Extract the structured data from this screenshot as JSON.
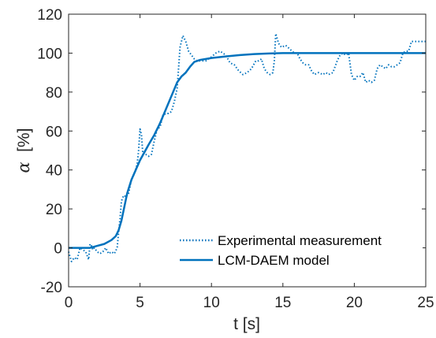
{
  "chart_data": {
    "type": "line",
    "xlabel": "t [s]",
    "ylabel_symbol": "α",
    "ylabel_unit": "[%]",
    "xlim": [
      0,
      25
    ],
    "ylim": [
      -20,
      120
    ],
    "xticks": [
      "0",
      "5",
      "10",
      "15",
      "20",
      "25"
    ],
    "yticks": [
      "-20",
      "0",
      "20",
      "40",
      "60",
      "80",
      "100",
      "120"
    ],
    "xtick_values": [
      0,
      5,
      10,
      15,
      20,
      25
    ],
    "ytick_values": [
      -20,
      0,
      20,
      40,
      60,
      80,
      100,
      120
    ],
    "grid": false,
    "legend_position": "bottom-right",
    "series": [
      {
        "name": "Experimental measurement",
        "style": "dotted",
        "color": "#0072BD",
        "x": [
          0,
          0.2,
          0.4,
          0.6,
          0.8,
          1.0,
          1.2,
          1.3,
          1.4,
          1.5,
          1.6,
          1.7,
          1.8,
          2.0,
          2.2,
          2.4,
          2.6,
          2.8,
          3.0,
          3.2,
          3.4,
          3.5,
          3.6,
          3.7,
          3.8,
          3.9,
          4.0,
          4.2,
          4.4,
          4.6,
          4.8,
          4.9,
          5.0,
          5.1,
          5.2,
          5.4,
          5.6,
          5.8,
          6.0,
          6.2,
          6.4,
          6.6,
          6.8,
          7.0,
          7.2,
          7.4,
          7.6,
          7.8,
          8.0,
          8.2,
          8.4,
          8.6,
          8.8,
          9.0,
          9.2,
          9.4,
          9.6,
          9.8,
          10.0,
          10.3,
          10.6,
          11.0,
          11.3,
          11.6,
          11.9,
          12.2,
          12.5,
          12.8,
          13.1,
          13.3,
          13.5,
          13.7,
          13.9,
          14.1,
          14.3,
          14.4,
          14.5,
          14.7,
          14.9,
          15.2,
          15.5,
          15.8,
          16.0,
          16.2,
          16.4,
          16.6,
          16.8,
          17.0,
          17.2,
          17.5,
          17.8,
          18.0,
          18.2,
          18.5,
          18.8,
          19.0,
          19.2,
          19.4,
          19.6,
          19.8,
          20.0,
          20.2,
          20.4,
          20.6,
          20.8,
          21.0,
          21.2,
          21.4,
          21.6,
          21.8,
          22.0,
          22.2,
          22.4,
          22.6,
          22.8,
          23.0,
          23.2,
          23.4,
          23.6,
          23.8,
          24.0,
          24.3,
          24.6,
          25.0
        ],
        "y": [
          -2,
          -7,
          -5,
          -6,
          0,
          -1,
          -2,
          -4,
          -6,
          2,
          1,
          -1,
          0,
          -2,
          -3,
          -2,
          0,
          -3,
          -2,
          -3,
          0,
          8,
          15,
          24,
          26,
          27,
          26,
          28,
          35,
          38,
          43,
          50,
          61,
          58,
          48,
          48,
          47,
          48,
          55,
          61,
          62,
          68,
          69,
          69,
          70,
          75,
          82,
          103,
          109,
          106,
          101,
          99,
          97,
          96,
          96,
          96,
          96,
          97,
          98,
          100,
          101,
          99,
          95,
          94,
          91,
          89,
          90,
          92,
          96,
          96,
          97,
          92,
          90,
          89,
          90,
          96,
          110,
          105,
          103,
          104,
          102,
          100,
          100,
          97,
          95,
          94,
          94,
          91,
          89,
          90,
          89,
          90,
          89,
          90,
          96,
          99,
          100,
          99,
          100,
          89,
          86,
          88,
          88,
          90,
          85,
          86,
          85,
          86,
          92,
          94,
          93,
          92,
          94,
          93,
          93,
          94,
          95,
          100,
          101,
          101,
          106,
          106,
          106,
          106
        ]
      },
      {
        "name": "LCM-DAEM model",
        "style": "solid",
        "color": "#0072BD",
        "x": [
          0,
          1.5,
          2.0,
          2.5,
          3.0,
          3.3,
          3.5,
          3.7,
          3.9,
          4.1,
          4.4,
          4.7,
          5.0,
          5.3,
          5.6,
          6.0,
          6.4,
          6.8,
          7.2,
          7.6,
          7.9,
          8.2,
          8.5,
          8.8,
          9.2,
          9.6,
          10.0,
          11.0,
          12.0,
          13.0,
          14.0,
          15.0,
          17.0,
          20.0,
          22.5,
          25.0
        ],
        "y": [
          0,
          0,
          1,
          2,
          4,
          6,
          9,
          14,
          21,
          28,
          35,
          40,
          45,
          49,
          53,
          58,
          64,
          71,
          78,
          85,
          88,
          90,
          93,
          95.5,
          96.5,
          97,
          97.5,
          98.3,
          99,
          99.5,
          99.8,
          100,
          100,
          100,
          100,
          100
        ]
      }
    ]
  }
}
